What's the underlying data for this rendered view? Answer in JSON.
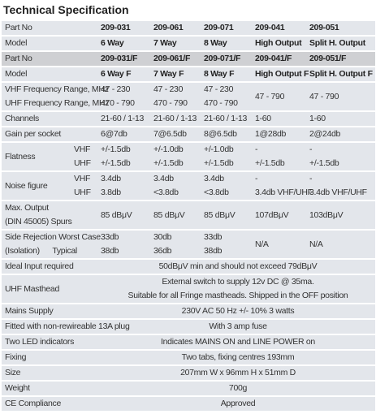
{
  "title": "Technical Specification",
  "rows": [
    {
      "label": [
        "Part No"
      ],
      "cells": [
        [
          "209-031"
        ],
        [
          "209-061"
        ],
        [
          "209-071"
        ],
        [
          "209-041"
        ],
        [
          "209-051"
        ]
      ]
    },
    {
      "label": [
        "Model"
      ],
      "cells": [
        [
          "6 Way"
        ],
        [
          "7 Way"
        ],
        [
          "8 Way"
        ],
        [
          "High Output"
        ],
        [
          "Split H. Output"
        ]
      ]
    },
    {
      "label": [
        "Part No"
      ],
      "cells": [
        [
          "209-031/F"
        ],
        [
          "209-061/F"
        ],
        [
          "209-071/F"
        ],
        [
          "209-041/F"
        ],
        [
          "209-051/F"
        ]
      ]
    },
    {
      "label": [
        "Model"
      ],
      "cells": [
        [
          "6 Way F"
        ],
        [
          "7 Way F"
        ],
        [
          "8 Way F"
        ],
        [
          "High Output F"
        ],
        [
          "Split H. Output F"
        ]
      ]
    },
    {
      "label": [
        "VHF Frequency Range, MHz",
        "UHF Frequency Range, MHz"
      ],
      "cells": [
        [
          "47 - 230",
          "470 - 790"
        ],
        [
          "47 - 230",
          "470 - 790"
        ],
        [
          "47 - 230",
          "470 - 790"
        ],
        [
          "47 - 790"
        ],
        [
          "47 - 790"
        ]
      ]
    },
    {
      "label": [
        "Channels"
      ],
      "cells": [
        [
          "21-60 / 1-13"
        ],
        [
          "21-60 / 1-13"
        ],
        [
          "21-60 / 1-13"
        ],
        [
          "1-60"
        ],
        [
          "1-60"
        ]
      ]
    },
    {
      "label": [
        "Gain per socket"
      ],
      "cells": [
        [
          "6@7db"
        ],
        [
          "7@6.5db"
        ],
        [
          "8@6.5db"
        ],
        [
          "1@28db"
        ],
        [
          "2@24db"
        ]
      ]
    },
    {
      "label": [
        "Flatness"
      ],
      "sub": [
        "VHF",
        "UHF"
      ],
      "cells": [
        [
          "+/-1.5db",
          "+/-1.5db"
        ],
        [
          "+/-1.0db",
          "+/-1.5db"
        ],
        [
          "+/-1.0db",
          "+/-1.5db"
        ],
        [
          "-",
          "+/-1.5db"
        ],
        [
          "-",
          "+/-1.5db"
        ]
      ]
    },
    {
      "label": [
        "Noise figure"
      ],
      "sub": [
        "VHF",
        "UHF"
      ],
      "cells": [
        [
          "3.4db",
          "3.8db"
        ],
        [
          "3.4db",
          "<3.8db"
        ],
        [
          "3.4db",
          "<3.8db"
        ],
        [
          "-",
          "3.4db VHF/UHF"
        ],
        [
          "-",
          "3.4db VHF/UHF"
        ]
      ]
    },
    {
      "label": [
        "Max. Output",
        "(DIN 45005) Spurs"
      ],
      "cells": [
        [
          "85 dBμV"
        ],
        [
          "85 dBμV"
        ],
        [
          "85 dBμV"
        ],
        [
          "107dBμV"
        ],
        [
          "103dBμV"
        ]
      ]
    },
    {
      "label": [
        "Side Rejection Worst Case",
        "(Isolation)      Typical"
      ],
      "cells": [
        [
          "33db",
          "38db"
        ],
        [
          "30db",
          "36db"
        ],
        [
          "33db",
          "38db"
        ],
        [
          "N/A"
        ],
        [
          "N/A"
        ]
      ]
    },
    {
      "label": [
        "Ideal Input required"
      ],
      "cells": [
        [
          "50dBμV min and should not exceed 79dBμV"
        ]
      ]
    },
    {
      "label": [
        "UHF Masthead"
      ],
      "cells": [
        [
          "External switch to supply 12v DC @ 35ma.",
          "Suitable for all Fringe mastheads. Shipped in the OFF position"
        ]
      ]
    },
    {
      "label": [
        "Mains Supply"
      ],
      "cells": [
        [
          "230V AC 50 Hz +/- 10% 3 watts"
        ]
      ]
    },
    {
      "label": [
        "Fitted with non-rewireable 13A plug"
      ],
      "cells": [
        [
          "With 3 amp fuse"
        ]
      ]
    },
    {
      "label": [
        "Two LED indicators"
      ],
      "cells": [
        [
          "Indicates MAINS ON and LINE POWER on"
        ]
      ]
    },
    {
      "label": [
        "Fixing"
      ],
      "cells": [
        [
          "Two tabs, fixing centres 193mm"
        ]
      ]
    },
    {
      "label": [
        "Size"
      ],
      "cells": [
        [
          "207mm W x 96mm H x 51mm D"
        ]
      ]
    },
    {
      "label": [
        "Weight"
      ],
      "cells": [
        [
          "700g"
        ]
      ]
    },
    {
      "label": [
        "CE Compliance"
      ],
      "cells": [
        [
          "Approved"
        ]
      ]
    }
  ]
}
